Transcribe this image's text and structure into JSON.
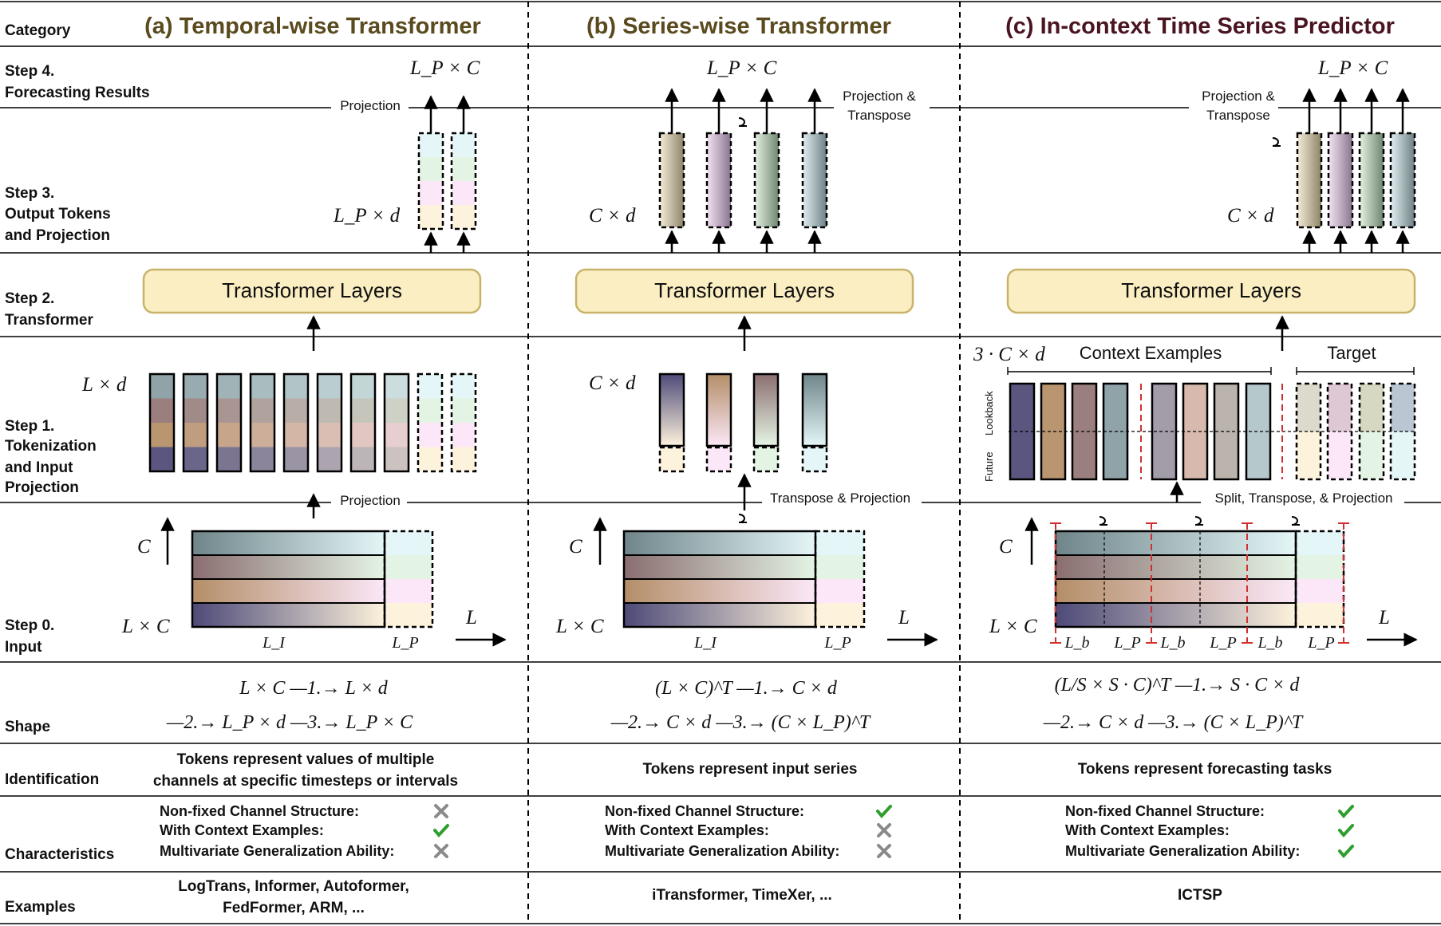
{
  "columns": {
    "a": {
      "title": "(a) Temporal-wise Transformer",
      "title_color": "#5a4a1e"
    },
    "b": {
      "title": "(b) Series-wise Transformer",
      "title_color": "#5a4a1e"
    },
    "c": {
      "title": "(c) In-context Time Series Predictor",
      "title_color": "#4a1520"
    }
  },
  "rows": {
    "category": "Category",
    "step4": [
      "Step 4.",
      "Forecasting Results"
    ],
    "step3": [
      "Step 3.",
      "Output Tokens",
      "and Projection"
    ],
    "step2": [
      "Step 2.",
      "Transformer"
    ],
    "step1": [
      "Step 1.",
      "Tokenization",
      "and Input",
      "Projection"
    ],
    "step0": [
      "Step 0.",
      "Input"
    ],
    "shape": "Shape",
    "identification": "Identification",
    "characteristics": "Characteristics",
    "examples": "Examples"
  },
  "labels": {
    "transformer_layers": "Transformer Layers",
    "projection": "Projection",
    "projection_transpose_1": "Projection &",
    "projection_transpose_2": "Transpose",
    "transpose_projection": "Transpose & Projection",
    "split_transpose_projection": "Split, Transpose, & Projection",
    "context_examples": "Context Examples",
    "target": "Target",
    "lookback": "Lookback",
    "future": "Future",
    "LP_x_C": "L_P × C",
    "LP_x_d": "L_P × d",
    "C_x_d": "C × d",
    "L_x_d": "L × d",
    "three_C_x_d": "3 · C × d",
    "C": "C",
    "L": "L",
    "L_x_C": "L × C",
    "LI": "L_I",
    "LP": "L_P",
    "Lb": "L_b"
  },
  "shape": {
    "a": [
      "L × C —1.→ L × d",
      "—2.→ L_P × d —3.→ L_P × C"
    ],
    "b": [
      "(L × C)^T —1.→ C × d",
      "—2.→ C × d —3.→ (C × L_P)^T"
    ],
    "c": [
      "(L/S × S · C)^T —1.→ S · C × d",
      "—2.→ C × d —3.→ (C × L_P)^T"
    ]
  },
  "identification": {
    "a": [
      "Tokens represent values of multiple",
      "channels at specific timesteps or intervals"
    ],
    "b": [
      "Tokens represent input series"
    ],
    "c": [
      "Tokens represent forecasting tasks"
    ]
  },
  "characteristics": {
    "labels": [
      "Non-fixed Channel Structure:",
      "With Context Examples:",
      "Multivariate Generalization Ability:"
    ],
    "a": [
      "cross",
      "check",
      "cross"
    ],
    "b": [
      "check",
      "cross",
      "cross"
    ],
    "c": [
      "check",
      "check",
      "check"
    ]
  },
  "examples": {
    "a": [
      "LogTrans, Informer, Autoformer,",
      "FedFormer, ARM, ..."
    ],
    "b": [
      "iTransformer, TimeXer, ..."
    ],
    "c": [
      "ICTSP"
    ]
  },
  "colors": {
    "transformer_fill": "#fbeec2",
    "transformer_stroke": "#c9b26a",
    "check": "#2e9e2e",
    "cross": "#8a8a8a",
    "divider_red": "#d03030",
    "ch1": "#8fa3a8",
    "ch2": "#9a7f7e",
    "ch3": "#b99570",
    "ch4": "#5a5680",
    "fut1": "#e4f6f7",
    "fut2": "#e4f4e4",
    "fut3": "#fbe7f7",
    "fut4": "#fdf2dc"
  }
}
